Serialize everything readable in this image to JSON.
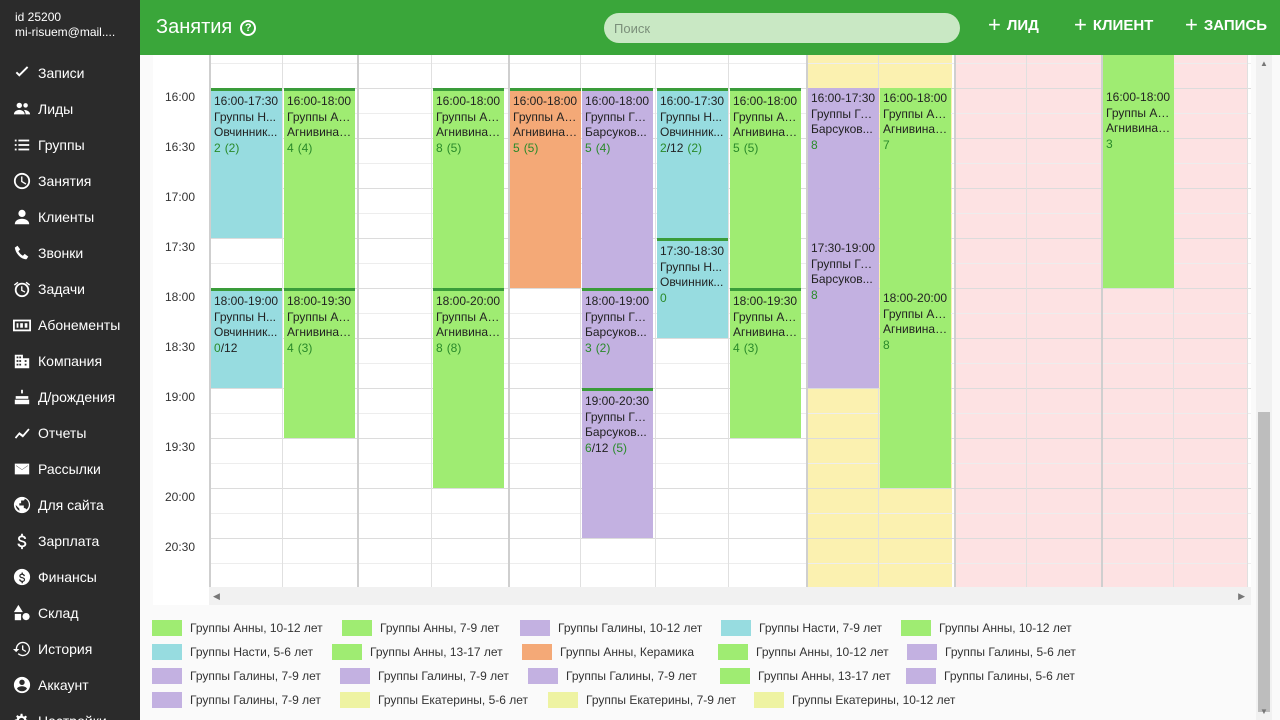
{
  "account": {
    "id": "id 25200",
    "email": "mi-risuem@mail...."
  },
  "nav": [
    {
      "label": "Записи",
      "icon": "check-icon"
    },
    {
      "label": "Лиды",
      "icon": "people-icon"
    },
    {
      "label": "Группы",
      "icon": "list-icon"
    },
    {
      "label": "Занятия",
      "icon": "clock-icon"
    },
    {
      "label": "Клиенты",
      "icon": "person-icon"
    },
    {
      "label": "Звонки",
      "icon": "phone-icon"
    },
    {
      "label": "Задачи",
      "icon": "alarm-icon"
    },
    {
      "label": "Абонементы",
      "icon": "ticket-icon"
    },
    {
      "label": "Компания",
      "icon": "building-icon"
    },
    {
      "label": "Д/рождения",
      "icon": "cake-icon"
    },
    {
      "label": "Отчеты",
      "icon": "chart-icon"
    },
    {
      "label": "Рассылки",
      "icon": "mail-icon"
    },
    {
      "label": "Для сайта",
      "icon": "globe-icon"
    },
    {
      "label": "Зарплата",
      "icon": "dollar-icon"
    },
    {
      "label": "Финансы",
      "icon": "coin-icon"
    },
    {
      "label": "Склад",
      "icon": "shapes-icon"
    },
    {
      "label": "История",
      "icon": "history-icon"
    },
    {
      "label": "Аккаунт",
      "icon": "account-icon"
    },
    {
      "label": "Настройки",
      "icon": "settings-icon"
    }
  ],
  "header": {
    "title": "Занятия",
    "help": "?",
    "search_placeholder": "Поиск",
    "buttons": [
      "ЛИД",
      "КЛИЕНТ",
      "ЗАПИСЬ"
    ]
  },
  "times": [
    "16:00",
    "16:30",
    "17:00",
    "17:30",
    "18:00",
    "18:30",
    "19:00",
    "19:30",
    "20:00",
    "20:30"
  ],
  "colors": {
    "green": "#9fec72",
    "teal": "#97dce0",
    "purple": "#c3b1e1",
    "orange": "#f4a977",
    "yellow": "#fbf1b0",
    "pink": "#fde2e3",
    "light_yellow": "#eef3a2",
    "accent": "#3aa63a"
  },
  "events": [
    {
      "col": 0,
      "start": "16:00",
      "end": "17:30",
      "color": "teal",
      "time": "16:00-17:30",
      "group": "Группы Н...",
      "teacher": "Овчинник...",
      "count": "2",
      "count_extra": "(2)"
    },
    {
      "col": 1,
      "start": "16:00",
      "end": "18:00",
      "color": "green",
      "time": "16:00-18:00",
      "group": "Группы Ан...",
      "teacher": "Агнивина ...",
      "count": "4",
      "count_extra": "(4)"
    },
    {
      "col": 0,
      "start": "18:00",
      "end": "19:00",
      "color": "teal",
      "time": "18:00-19:00",
      "group": "Группы Н...",
      "teacher": "Овчинник...",
      "count": "0/12",
      "count_extra": ""
    },
    {
      "col": 1,
      "start": "18:00",
      "end": "19:30",
      "color": "green",
      "time": "18:00-19:30",
      "group": "Группы Ан...",
      "teacher": "Агнивина ...",
      "count": "4",
      "count_extra": "(3)"
    },
    {
      "col": 3,
      "start": "16:00",
      "end": "18:00",
      "color": "green",
      "time": "16:00-18:00",
      "group": "Группы Ан...",
      "teacher": "Агнивина ...",
      "count": "8",
      "count_extra": "(5)"
    },
    {
      "col": 3,
      "start": "18:00",
      "end": "20:00",
      "color": "green",
      "time": "18:00-20:00",
      "group": "Группы Ан...",
      "teacher": "Агнивина ...",
      "count": "8",
      "count_extra": "(8)"
    },
    {
      "col": 4,
      "start": "16:00",
      "end": "18:00",
      "color": "orange",
      "time": "16:00-18:00",
      "group": "Группы Ан...",
      "teacher": "Агнивина ...",
      "count": "5",
      "count_extra": "(5)"
    },
    {
      "col": 5,
      "start": "16:00",
      "end": "18:00",
      "color": "purple",
      "time": "16:00-18:00",
      "group": "Группы Га...",
      "teacher": "Барсуков...",
      "count": "5",
      "count_extra": "(4)"
    },
    {
      "col": 5,
      "start": "18:00",
      "end": "19:00",
      "color": "purple",
      "time": "18:00-19:00",
      "group": "Группы Га...",
      "teacher": "Барсуков...",
      "count": "3",
      "count_extra": "(2)"
    },
    {
      "col": 5,
      "start": "19:00",
      "end": "20:30",
      "color": "purple",
      "time": "19:00-20:30",
      "group": "Группы Га...",
      "teacher": "Барсуков...",
      "count": "6/12",
      "count_extra": "(5)"
    },
    {
      "col": 6,
      "start": "16:00",
      "end": "17:30",
      "color": "teal",
      "time": "16:00-17:30",
      "group": "Группы Н...",
      "teacher": "Овчинник...",
      "count": "2/12",
      "count_extra": "(2)"
    },
    {
      "col": 6,
      "start": "17:30",
      "end": "18:30",
      "color": "teal",
      "time": "17:30-18:30",
      "group": "Группы Н...",
      "teacher": "Овчинник...",
      "count": "0",
      "count_extra": ""
    },
    {
      "col": 7,
      "start": "16:00",
      "end": "18:00",
      "color": "green",
      "time": "16:00-18:00",
      "group": "Группы Ан...",
      "teacher": "Агнивина ...",
      "count": "5",
      "count_extra": "(5)"
    },
    {
      "col": 7,
      "start": "18:00",
      "end": "19:30",
      "color": "green",
      "time": "18:00-19:30",
      "group": "Группы Ан...",
      "teacher": "Агнивина ...",
      "count": "4",
      "count_extra": "(3)"
    },
    {
      "col": 8,
      "start": "16:00",
      "end": "17:30",
      "color": "purple",
      "time": "16:00-17:30",
      "group": "Группы Га...",
      "teacher": "Барсуков...",
      "count": "8",
      "count_extra": "",
      "noborder": true
    },
    {
      "col": 8,
      "start": "17:30",
      "end": "19:00",
      "color": "purple",
      "time": "17:30-19:00",
      "group": "Группы Га...",
      "teacher": "Барсуков...",
      "count": "8",
      "count_extra": "",
      "noborder": true
    },
    {
      "col": 9,
      "start": "16:00",
      "end": "18:00",
      "color": "green",
      "time": "16:00-18:00",
      "group": "Группы Ан...",
      "teacher": "Агнивина ...",
      "count": "7",
      "count_extra": "",
      "noborder": true
    },
    {
      "col": 9,
      "start": "18:00",
      "end": "20:00",
      "color": "green",
      "time": "18:00-20:00",
      "group": "Группы Ан...",
      "teacher": "Агнивина ...",
      "count": "8",
      "count_extra": "",
      "noborder": true
    },
    {
      "col": 12,
      "start": "16:00",
      "end": "18:00",
      "color": "green",
      "time": "16:00-18:00",
      "group": "Группы Ан...",
      "teacher": "Агнивина ...",
      "count": "3",
      "count_extra": "",
      "noborder": true,
      "extend_top": true
    }
  ],
  "legend": [
    [
      {
        "label": "Группы Анны, 10-12 лет",
        "color": "#9fec72"
      },
      {
        "label": "Группы Анны, 7-9 лет",
        "color": "#9fec72"
      },
      {
        "label": "Группы Галины, 10-12 лет",
        "color": "#c3b1e1"
      },
      {
        "label": "Группы Насти, 7-9 лет",
        "color": "#97dce0"
      },
      {
        "label": "Группы Анны, 10-12 лет",
        "color": "#9fec72"
      }
    ],
    [
      {
        "label": "Группы Насти, 5-6 лет",
        "color": "#97dce0"
      },
      {
        "label": "Группы Анны, 13-17 лет",
        "color": "#9fec72"
      },
      {
        "label": "Группы Анны, Керамика",
        "color": "#f4a977"
      },
      {
        "label": "Группы Анны, 10-12 лет",
        "color": "#9fec72"
      },
      {
        "label": "Группы Галины, 5-6 лет",
        "color": "#c3b1e1"
      }
    ],
    [
      {
        "label": "Группы Галины, 7-9 лет",
        "color": "#c3b1e1"
      },
      {
        "label": "Группы Галины, 7-9 лет",
        "color": "#c3b1e1"
      },
      {
        "label": "Группы Галины, 7-9 лет",
        "color": "#c3b1e1"
      },
      {
        "label": "Группы Анны, 13-17 лет",
        "color": "#9fec72"
      },
      {
        "label": "Группы Галины, 5-6 лет",
        "color": "#c3b1e1"
      }
    ],
    [
      {
        "label": "Группы Галины, 7-9 лет",
        "color": "#c3b1e1"
      },
      {
        "label": "Группы Екатерины, 5-6 лет",
        "color": "#eef3a2"
      },
      {
        "label": "Группы Екатерины, 7-9 лет",
        "color": "#eef3a2"
      },
      {
        "label": "Группы Екатерины, 10-12 лет",
        "color": "#eef3a2"
      }
    ]
  ]
}
